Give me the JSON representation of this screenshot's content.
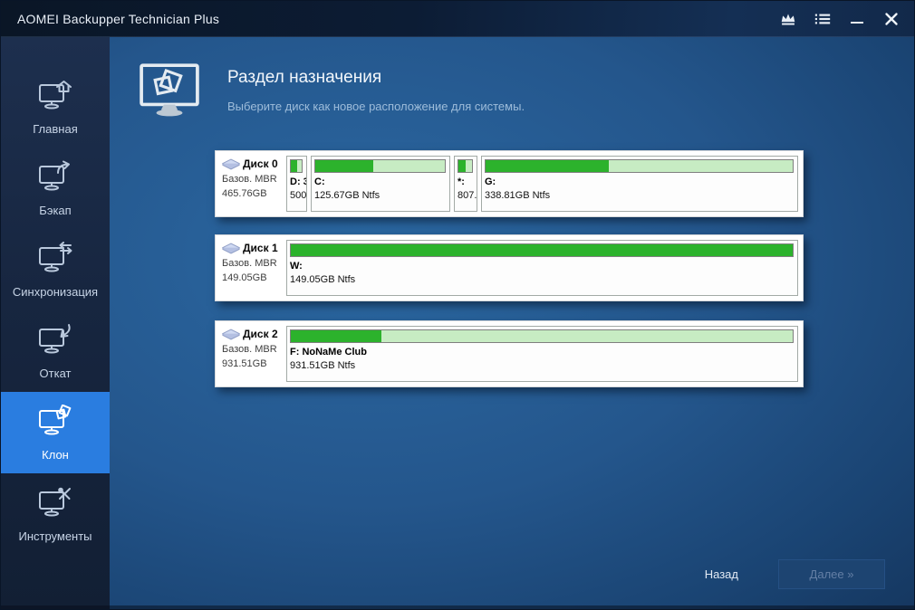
{
  "titlebar": {
    "title": "AOMEI Backupper Technician Plus",
    "icons": [
      "crown-icon",
      "menu-list-icon",
      "minimize-icon",
      "close-icon"
    ]
  },
  "sidebar": {
    "items": [
      {
        "label": "Главная",
        "icon": "monitor-home-icon",
        "active": false
      },
      {
        "label": "Бэкап",
        "icon": "monitor-backup-arrow-icon",
        "active": false
      },
      {
        "label": "Синхронизация",
        "icon": "monitor-sync-arrows-icon",
        "active": false
      },
      {
        "label": "Откат",
        "icon": "monitor-restore-arrow-icon",
        "active": false
      },
      {
        "label": "Клон",
        "icon": "monitor-clone-icon",
        "active": true
      },
      {
        "label": "Инструменты",
        "icon": "monitor-tools-icon",
        "active": false
      }
    ]
  },
  "header": {
    "icon": "clone-monitor-icon",
    "title": "Раздел назначения",
    "subtitle": "Выберите диск как новое расположение для системы."
  },
  "disks": [
    {
      "name": "Диск 0",
      "type": "Базов. MBR",
      "size": "465.76GB",
      "partitions": [
        {
          "label": "D: 3",
          "size": "500.",
          "fill_percent": 58
        },
        {
          "label": "C:",
          "size": "125.67GB Ntfs",
          "fill_percent": 45
        },
        {
          "label": "*:",
          "size": "807.",
          "fill_percent": 55
        },
        {
          "label": "G:",
          "size": "338.81GB Ntfs",
          "fill_percent": 40
        }
      ]
    },
    {
      "name": "Диск 1",
      "type": "Базов. MBR",
      "size": "149.05GB",
      "partitions": [
        {
          "label": "W:",
          "size": "149.05GB Ntfs",
          "fill_percent": 100
        }
      ]
    },
    {
      "name": "Диск 2",
      "type": "Базов. MBR",
      "size": "931.51GB",
      "partitions": [
        {
          "label": "F: NoNaMe Club",
          "size": "931.51GB Ntfs",
          "fill_percent": 18
        }
      ]
    }
  ],
  "footer": {
    "back_label": "Назад",
    "next_label": "Далее »",
    "next_enabled": false
  },
  "colors": {
    "accent_blue": "#2a7de0",
    "bar_fill_green": "#2cb22c",
    "bar_bg_green": "#c7ecc3",
    "disabled_button_bg": "#1d4471"
  }
}
